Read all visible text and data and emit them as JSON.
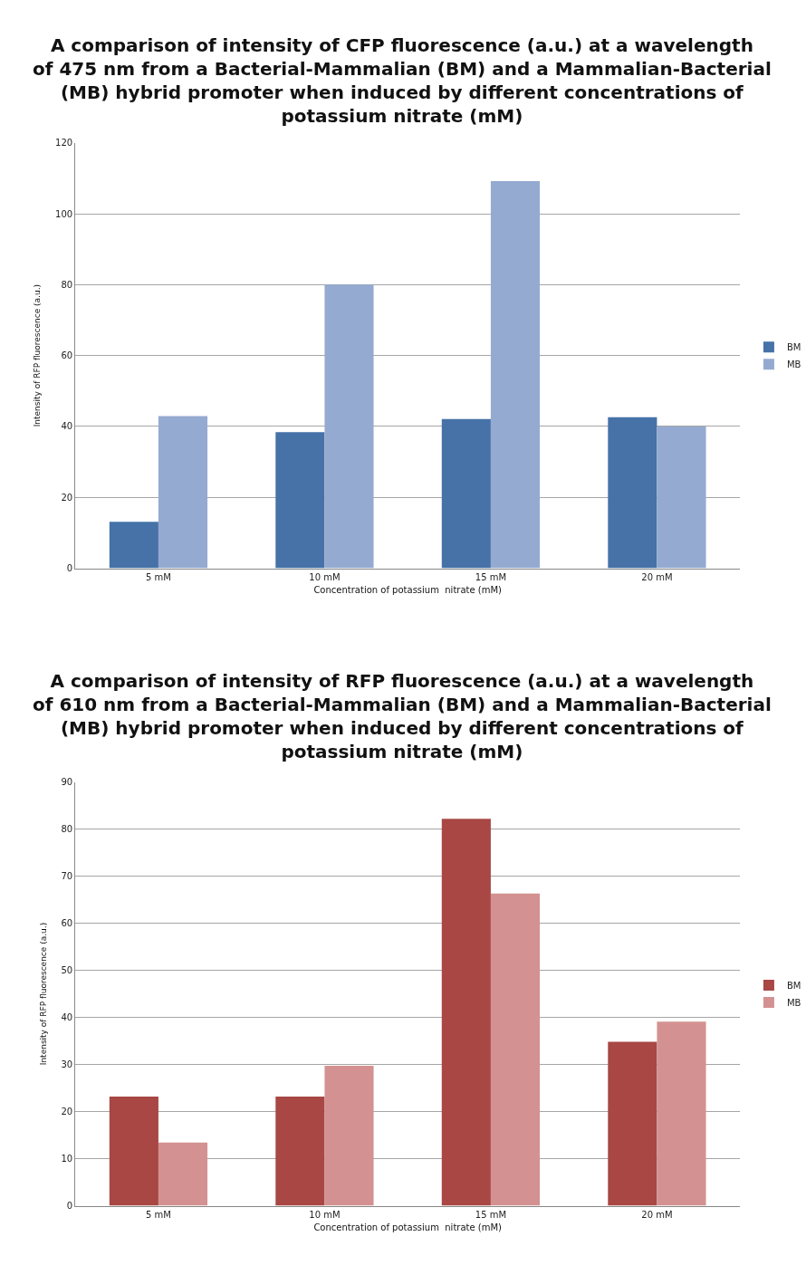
{
  "chart_data": [
    {
      "type": "bar",
      "title": "A comparison of intensity of CFP fluorescence (a.u.) at a wavelength of 475 nm from a Bacterial-Mammalian (BM) and a Mammalian-Bacterial (MB) hybrid promoter when induced by different concentrations of potassium nitrate (mM)",
      "xlabel": "Concentration of potassium  nitrate (mM)",
      "ylabel": "Intensity of RFP fluorescence (a.u.)",
      "categories": [
        "5 mM",
        "10 mM",
        "15 mM",
        "20 mM"
      ],
      "series": [
        {
          "name": "BM",
          "color": "#4672a8",
          "values": [
            13.1,
            38.4,
            42.1,
            42.6
          ]
        },
        {
          "name": "MB",
          "color": "#95aad1",
          "values": [
            42.9,
            80,
            109.2,
            40
          ]
        }
      ],
      "ylim": [
        0,
        120
      ],
      "yticks": [
        0,
        20,
        40,
        60,
        80,
        100,
        120
      ],
      "grid": "y",
      "legend": "right"
    },
    {
      "type": "bar",
      "title": "A comparison of intensity of RFP fluorescence (a.u.) at a wavelength of 610 nm from a Bacterial-Mammalian (BM) and a Mammalian-Bacterial (MB) hybrid promoter when induced by different concentrations of potassium nitrate (mM)",
      "xlabel": "Concentration of potassium  nitrate (mM)",
      "ylabel": "Intensity of RFP fluorescence (a.u.)",
      "categories": [
        "5 mM",
        "10 mM",
        "15 mM",
        "20 mM"
      ],
      "series": [
        {
          "name": "BM",
          "color": "#a84744",
          "values": [
            23.2,
            23.2,
            82.2,
            34.8
          ]
        },
        {
          "name": "MB",
          "color": "#d39291",
          "values": [
            13.4,
            29.7,
            66.3,
            39.1
          ]
        }
      ],
      "ylim": [
        0,
        90
      ],
      "yticks": [
        0,
        10,
        20,
        30,
        40,
        50,
        60,
        70,
        80,
        90
      ],
      "grid": "y",
      "legend": "right"
    }
  ]
}
